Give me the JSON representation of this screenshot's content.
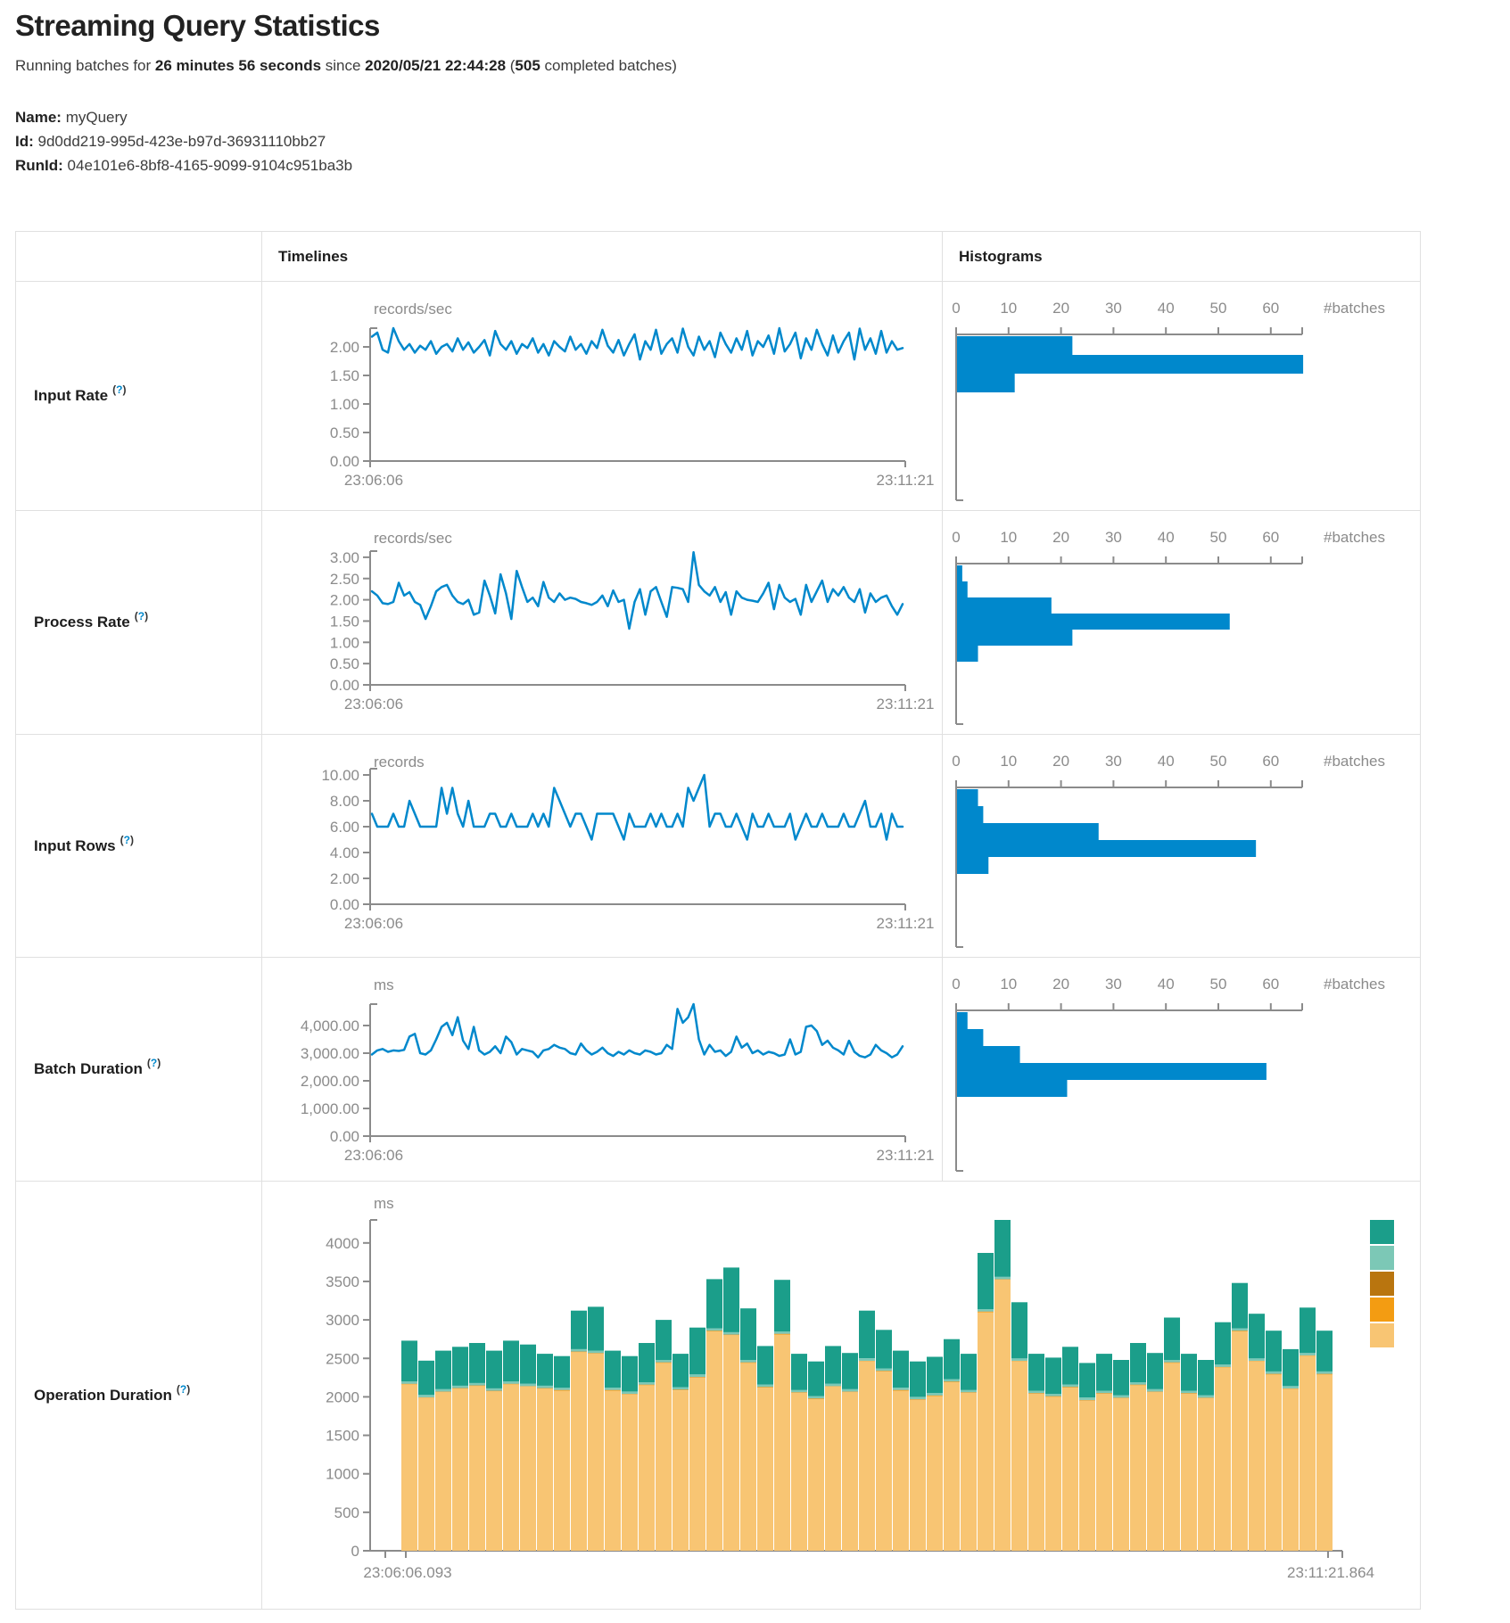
{
  "page": {
    "title": "Streaming Query Statistics",
    "subtitle": {
      "prefix": "Running batches for ",
      "duration": "26 minutes 56 seconds",
      "since_word": " since ",
      "start_time": "2020/05/21 22:44:28",
      "paren_open": " (",
      "batches_count": "505",
      "suffix": " completed batches)"
    }
  },
  "query": {
    "name_label": "Name:",
    "name": " myQuery",
    "id_label": "Id:",
    "id": " 9d0dd219-995d-423e-b97d-36931110bb27",
    "runid_label": "RunId:",
    "runid": " 04e101e6-8bf8-4165-9099-9104c951ba3b"
  },
  "table": {
    "timelines_header": "Timelines",
    "histograms_header": "Histograms",
    "help": {
      "open": "(",
      "q": "?",
      "close": ")"
    }
  },
  "rows": [
    {
      "label": "Input Rate"
    },
    {
      "label": "Process Rate"
    },
    {
      "label": "Input Rows"
    },
    {
      "label": "Batch Duration"
    },
    {
      "label": "Operation Duration"
    }
  ],
  "chart_data": [
    {
      "id": "input-rate-timeline",
      "type": "line",
      "title": "records/sec",
      "x_start_label": "23:06:06",
      "x_end_label": "23:11:21",
      "ylim": [
        0,
        2.33
      ],
      "line_color": "#0088cc",
      "grid": false,
      "y_ticks": [
        {
          "v": 2,
          "l": "2.00"
        },
        {
          "v": 1.5,
          "l": "1.50"
        },
        {
          "v": 1,
          "l": "1.00"
        },
        {
          "v": 0.5,
          "l": "0.50"
        },
        {
          "v": 0,
          "l": "0.00"
        }
      ],
      "values": [
        2.18,
        2.25,
        1.95,
        1.9,
        2.36,
        2.1,
        1.95,
        2.05,
        1.9,
        2.02,
        1.95,
        2.1,
        1.88,
        2.0,
        2.05,
        1.92,
        2.15,
        1.95,
        2.08,
        1.9,
        2.0,
        2.12,
        1.85,
        2.28,
        2.05,
        1.95,
        2.1,
        1.88,
        2.05,
        1.98,
        2.15,
        1.9,
        2.05,
        1.85,
        2.1,
        2.0,
        1.92,
        2.18,
        1.95,
        2.05,
        1.88,
        2.1,
        1.98,
        2.3,
        2.02,
        1.9,
        2.12,
        1.85,
        2.05,
        2.22,
        1.78,
        2.1,
        1.95,
        2.3,
        1.88,
        2.05,
        2.15,
        1.9,
        2.32,
        2.0,
        1.85,
        2.18,
        1.95,
        2.1,
        1.82,
        2.25,
        2.05,
        1.9,
        2.15,
        1.95,
        2.28,
        1.85,
        2.1,
        2.0,
        2.2,
        1.88,
        2.35,
        1.92,
        2.05,
        2.25,
        1.8,
        2.15,
        1.95,
        2.3,
        2.05,
        1.85,
        2.2,
        1.9,
        2.1,
        2.25,
        1.78,
        2.32,
        1.95,
        2.15,
        1.88,
        2.28,
        1.9,
        2.1,
        1.95,
        1.98
      ]
    },
    {
      "id": "input-rate-histogram",
      "type": "bar",
      "orientation": "horizontal",
      "xlabel": "#batches",
      "x_ticks": [
        0,
        10,
        20,
        30,
        40,
        50,
        60
      ],
      "xlim": [
        0,
        66
      ],
      "bar_color": "#0088cc",
      "values": [
        22,
        66,
        11
      ]
    },
    {
      "id": "process-rate-timeline",
      "type": "line",
      "title": "records/sec",
      "x_start_label": "23:06:06",
      "x_end_label": "23:11:21",
      "ylim": [
        0,
        3.15
      ],
      "line_color": "#0088cc",
      "grid": false,
      "y_ticks": [
        {
          "v": 3,
          "l": "3.00"
        },
        {
          "v": 2.5,
          "l": "2.50"
        },
        {
          "v": 2,
          "l": "2.00"
        },
        {
          "v": 1.5,
          "l": "1.50"
        },
        {
          "v": 1,
          "l": "1.00"
        },
        {
          "v": 0.5,
          "l": "0.50"
        },
        {
          "v": 0,
          "l": "0.00"
        }
      ],
      "values": [
        2.2,
        2.1,
        1.92,
        1.9,
        1.95,
        2.4,
        2.1,
        2.18,
        1.95,
        1.88,
        1.55,
        1.85,
        2.2,
        2.3,
        2.35,
        2.1,
        1.95,
        1.9,
        2.0,
        1.65,
        1.7,
        2.45,
        2.1,
        1.68,
        2.6,
        2.15,
        1.55,
        2.68,
        2.3,
        1.95,
        2.05,
        1.85,
        2.42,
        2.05,
        1.95,
        2.15,
        2.0,
        2.05,
        2.02,
        1.95,
        1.92,
        1.88,
        1.95,
        2.1,
        1.85,
        2.22,
        1.95,
        2.0,
        1.32,
        1.95,
        2.25,
        1.65,
        2.2,
        2.3,
        1.95,
        1.6,
        2.3,
        2.28,
        2.25,
        1.95,
        3.12,
        2.35,
        2.2,
        2.1,
        2.3,
        1.95,
        2.18,
        1.65,
        2.2,
        2.05,
        2.0,
        1.98,
        1.95,
        2.15,
        2.4,
        1.78,
        2.35,
        2.05,
        1.95,
        2.02,
        1.65,
        2.35,
        1.95,
        2.2,
        2.45,
        1.95,
        2.25,
        2.1,
        2.3,
        2.05,
        1.95,
        2.25,
        1.7,
        2.15,
        1.95,
        2.05,
        2.1,
        1.85,
        1.65,
        1.9
      ]
    },
    {
      "id": "process-rate-histogram",
      "type": "bar",
      "orientation": "horizontal",
      "xlabel": "#batches",
      "x_ticks": [
        0,
        10,
        20,
        30,
        40,
        50,
        60
      ],
      "xlim": [
        0,
        66
      ],
      "bar_color": "#0088cc",
      "values": [
        1,
        2,
        18,
        52,
        22,
        4
      ]
    },
    {
      "id": "input-rows-timeline",
      "type": "line",
      "title": "records",
      "x_start_label": "23:06:06",
      "x_end_label": "23:11:21",
      "ylim": [
        0,
        10.5
      ],
      "line_color": "#0088cc",
      "grid": false,
      "y_ticks": [
        {
          "v": 10,
          "l": "10.00"
        },
        {
          "v": 8,
          "l": "8.00"
        },
        {
          "v": 6,
          "l": "6.00"
        },
        {
          "v": 4,
          "l": "4.00"
        },
        {
          "v": 2,
          "l": "2.00"
        },
        {
          "v": 0,
          "l": "0.00"
        }
      ],
      "values": [
        7,
        6,
        6,
        6,
        7,
        6,
        6,
        8,
        7,
        6,
        6,
        6,
        6,
        9,
        7,
        9,
        7,
        6,
        8,
        6,
        6,
        6,
        7,
        7,
        6,
        6,
        7,
        6,
        6,
        6,
        7,
        6,
        7,
        6,
        9,
        8,
        7,
        6,
        7,
        7,
        6,
        5,
        7,
        7,
        7,
        7,
        6,
        5,
        7,
        6,
        6,
        6,
        7,
        6,
        7,
        6,
        6,
        7,
        6,
        9,
        8,
        9,
        10,
        6,
        7,
        7,
        6,
        6,
        7,
        6,
        5,
        7,
        6,
        6,
        7,
        6,
        6,
        6,
        7,
        5,
        6,
        7,
        6,
        6,
        7,
        6,
        6,
        6,
        7,
        6,
        6,
        7,
        8,
        6,
        6,
        7,
        5,
        7,
        6,
        6
      ]
    },
    {
      "id": "input-rows-histogram",
      "type": "bar",
      "orientation": "horizontal",
      "xlabel": "#batches",
      "x_ticks": [
        0,
        10,
        20,
        30,
        40,
        50,
        60
      ],
      "xlim": [
        0,
        66
      ],
      "bar_color": "#0088cc",
      "values": [
        4,
        5,
        27,
        57,
        6
      ]
    },
    {
      "id": "batch-duration-timeline",
      "type": "line",
      "title": "ms",
      "x_start_label": "23:06:06",
      "x_end_label": "23:11:21",
      "ylim": [
        0,
        4774
      ],
      "line_color": "#0088cc",
      "grid": false,
      "y_ticks": [
        {
          "v": 4000,
          "l": "4,000.00"
        },
        {
          "v": 3000,
          "l": "3,000.00"
        },
        {
          "v": 2000,
          "l": "2,000.00"
        },
        {
          "v": 1000,
          "l": "1,000.00"
        },
        {
          "v": 0,
          "l": "0.00"
        }
      ],
      "values": [
        2950,
        3100,
        3150,
        3050,
        3100,
        3080,
        3120,
        3600,
        3700,
        3000,
        2950,
        3100,
        3500,
        3950,
        4100,
        3650,
        4300,
        3450,
        3150,
        3950,
        3100,
        2950,
        3050,
        3250,
        3000,
        3600,
        3400,
        2950,
        3150,
        3100,
        3050,
        2850,
        3100,
        3150,
        3300,
        3200,
        3150,
        3000,
        2950,
        3350,
        3100,
        2950,
        3050,
        3200,
        3000,
        2900,
        3050,
        2950,
        3100,
        3000,
        2950,
        3100,
        3050,
        2950,
        3000,
        3300,
        3150,
        4600,
        4100,
        4300,
        4850,
        3500,
        2950,
        3300,
        3050,
        3100,
        2900,
        3050,
        3600,
        3200,
        3350,
        3000,
        3100,
        2950,
        3050,
        3000,
        2900,
        2950,
        3500,
        2950,
        3050,
        3950,
        4000,
        3800,
        3300,
        3450,
        3200,
        3100,
        2950,
        3450,
        3050,
        2900,
        2850,
        2950,
        3300,
        3100,
        3000,
        2850,
        2950,
        3250
      ]
    },
    {
      "id": "batch-duration-histogram",
      "type": "bar",
      "orientation": "horizontal",
      "xlabel": "#batches",
      "x_ticks": [
        0,
        10,
        20,
        30,
        40,
        50,
        60
      ],
      "xlim": [
        0,
        66
      ],
      "bar_color": "#0088cc",
      "values": [
        2,
        5,
        12,
        59,
        21
      ]
    },
    {
      "id": "operation-duration",
      "type": "stacked-bar",
      "title": "ms",
      "x_start_label": "23:06:06.093",
      "x_end_label": "23:11:21.864",
      "ylim": [
        0,
        4300
      ],
      "grid": false,
      "y_ticks": [
        {
          "v": 4000,
          "l": "4000"
        },
        {
          "v": 3500,
          "l": "3500"
        },
        {
          "v": 3000,
          "l": "3000"
        },
        {
          "v": 2500,
          "l": "2500"
        },
        {
          "v": 2000,
          "l": "2000"
        },
        {
          "v": 1500,
          "l": "1500"
        },
        {
          "v": 1000,
          "l": "1000"
        },
        {
          "v": 500,
          "l": "500"
        },
        {
          "v": 0,
          "l": "0"
        }
      ],
      "legend_colors": [
        "#1b9e8a",
        "#7cc8b6",
        "#b9750f",
        "#f39c12",
        "#f8c573"
      ],
      "series": [
        {
          "name": "series-tan",
          "color": "#f8c573",
          "values": [
            2160,
            1985,
            2060,
            2105,
            2140,
            2070,
            2160,
            2130,
            2105,
            2080,
            2580,
            2560,
            2080,
            2030,
            2150,
            2440,
            2085,
            2250,
            2850,
            2800,
            2440,
            2120,
            2810,
            2050,
            1970,
            2130,
            2060,
            2460,
            2330,
            2080,
            1960,
            2010,
            2190,
            2050,
            3100,
            3520,
            2460,
            2040,
            2000,
            2120,
            1950,
            2040,
            1980,
            2150,
            2060,
            2440,
            2040,
            1980,
            2380,
            2850,
            2460,
            2290,
            2100,
            2530,
            2290
          ]
        },
        {
          "name": "series-orange",
          "color": "#f39c12",
          "constant": 6,
          "count": 55
        },
        {
          "name": "series-gold",
          "color": "#b9750f",
          "constant": 4,
          "count": 55
        },
        {
          "name": "series-light-teal",
          "color": "#7cc8b6",
          "constant": 30,
          "count": 55
        },
        {
          "name": "series-teal",
          "color": "#1b9e8a",
          "values": [
            530,
            445,
            500,
            505,
            520,
            490,
            530,
            510,
            415,
            410,
            500,
            570,
            480,
            460,
            510,
            520,
            435,
            610,
            640,
            840,
            670,
            500,
            670,
            470,
            450,
            490,
            470,
            620,
            500,
            480,
            460,
            470,
            520,
            470,
            730,
            740,
            730,
            480,
            470,
            490,
            450,
            480,
            460,
            510,
            470,
            550,
            480,
            460,
            550,
            590,
            580,
            530,
            480,
            590,
            530
          ]
        }
      ]
    }
  ]
}
